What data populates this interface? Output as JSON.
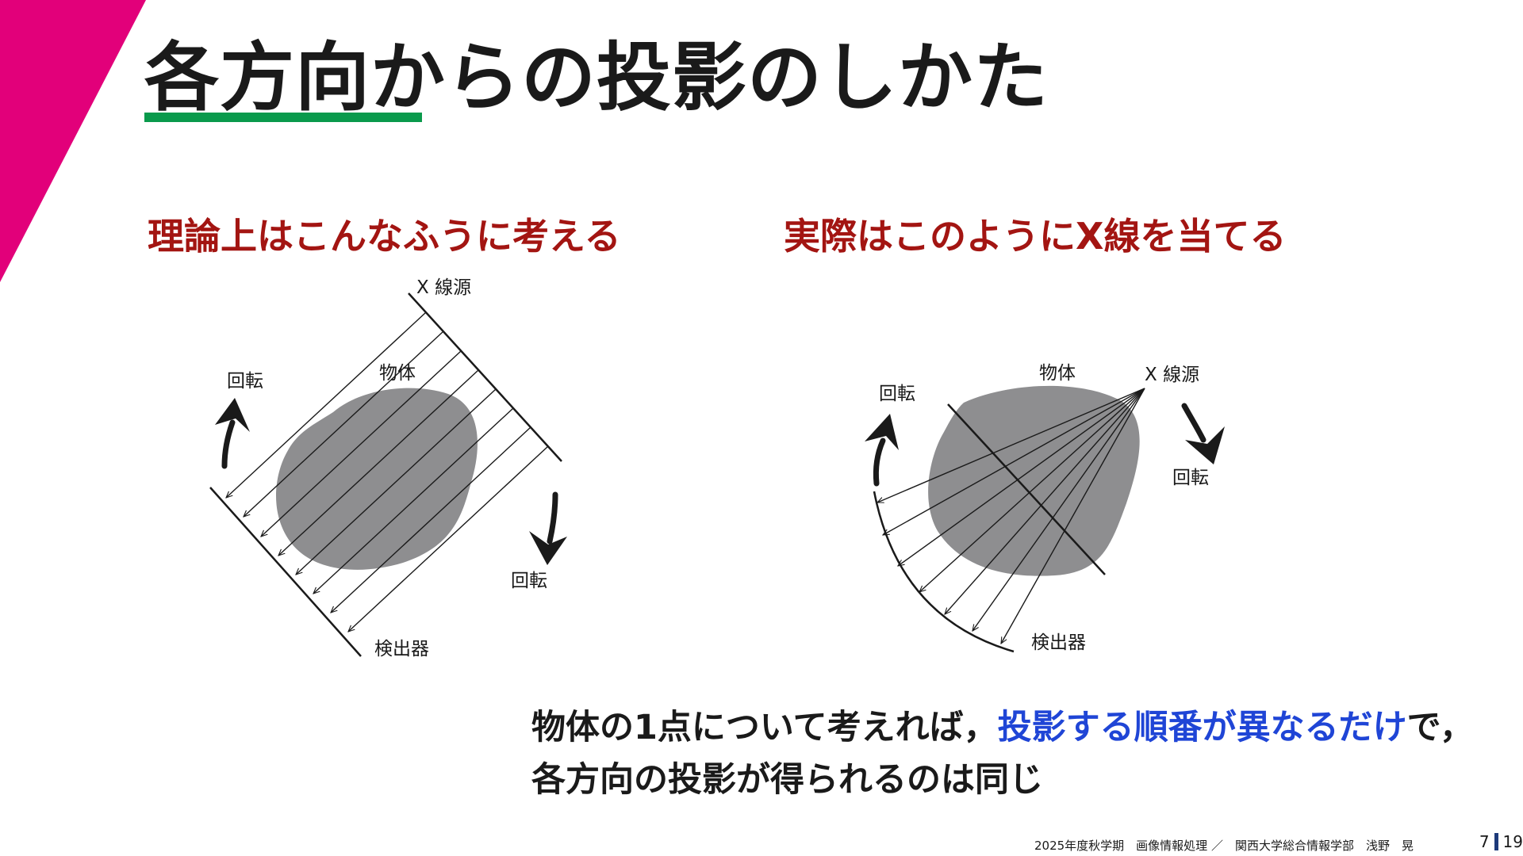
{
  "slide": {
    "title": "各方向からの投影のしかた",
    "accent_color": "#e2007a",
    "underline_color": "#0a9a4c"
  },
  "left_panel": {
    "heading": "理論上はこんなふうに考える",
    "labels": {
      "source": "X 線源",
      "object": "物体",
      "rotate_top": "回転",
      "rotate_bottom": "回転",
      "detector": "検出器"
    }
  },
  "right_panel": {
    "heading": "実際はこのようにX線を当てる",
    "labels": {
      "object": "物体",
      "source": "X 線源",
      "rotate_left": "回転",
      "rotate_right": "回転",
      "detector": "検出器"
    }
  },
  "summary": {
    "line1_prefix": "物体の1点について考えれば，",
    "line1_highlight": "投影する順番が異なるだけ",
    "line1_suffix": "で，",
    "line2": "各方向の投影が得られるのは同じ",
    "highlight_color": "#1f45d6"
  },
  "footer": {
    "text": "2025年度秋学期　画像情報処理 ／　関西大学総合情報学部　浅野　晃",
    "page_current": "7",
    "page_total": "19"
  }
}
